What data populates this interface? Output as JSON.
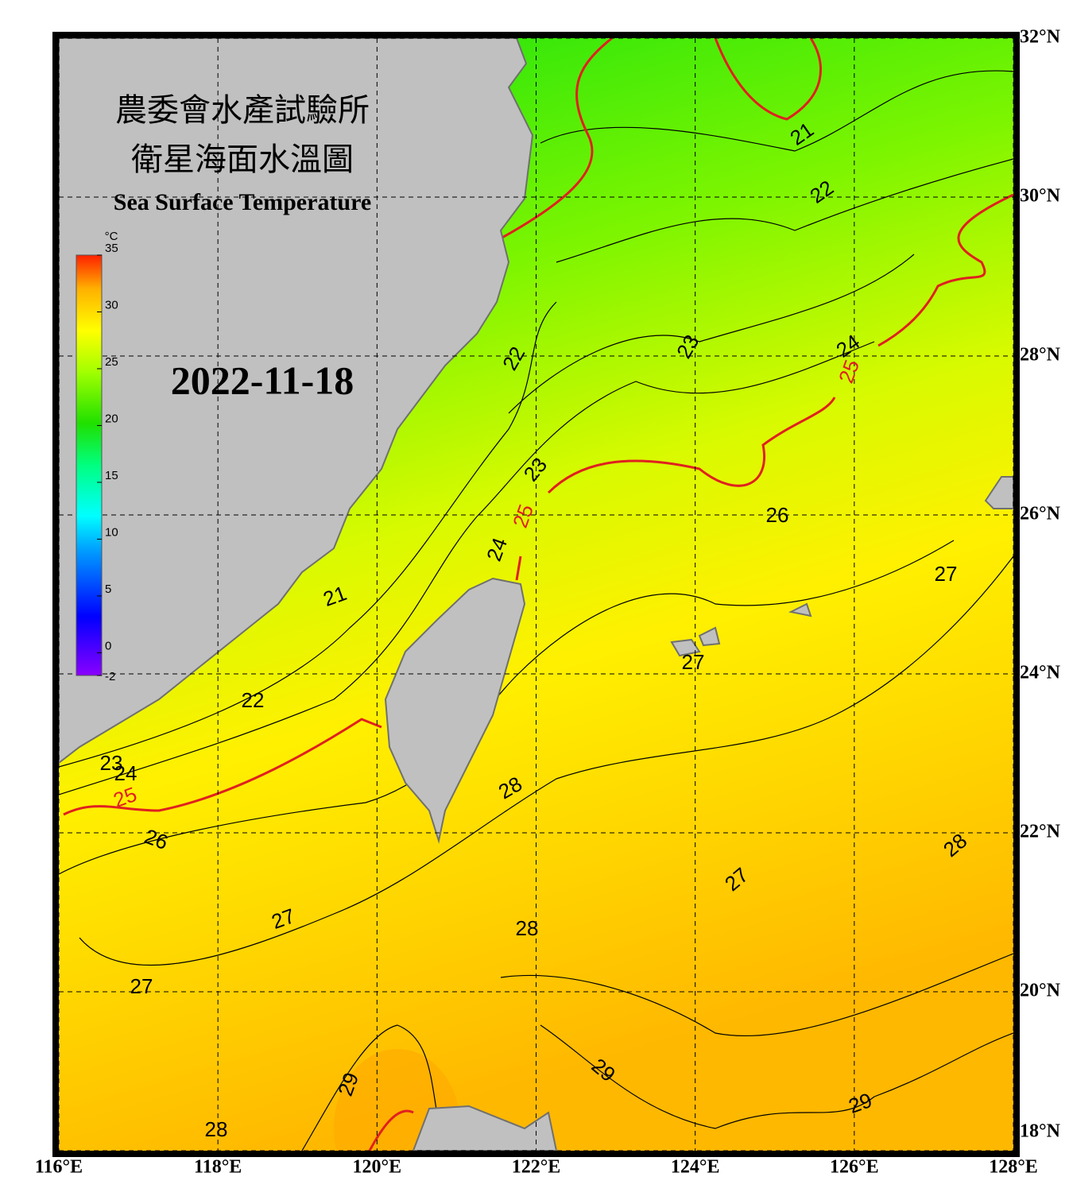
{
  "title": {
    "line1": "農委會水產試驗所",
    "line2": "衛星海面水溫圖",
    "line3": "Sea Surface Temperature",
    "date": "2022-11-18"
  },
  "colorbar": {
    "unit": "°C",
    "range": [
      -2,
      35
    ],
    "ticks": [
      -2,
      0,
      5,
      10,
      15,
      20,
      25,
      30,
      35
    ]
  },
  "axes": {
    "xlim": [
      116,
      128
    ],
    "ylim": [
      18,
      32
    ],
    "xticks": [
      {
        "value": 116,
        "label": "116°E"
      },
      {
        "value": 118,
        "label": "118°E"
      },
      {
        "value": 120,
        "label": "120°E"
      },
      {
        "value": 122,
        "label": "122°E"
      },
      {
        "value": 124,
        "label": "124°E"
      },
      {
        "value": 126,
        "label": "126°E"
      },
      {
        "value": 128,
        "label": "128°E"
      }
    ],
    "yticks": [
      {
        "value": 18,
        "label": "18°N"
      },
      {
        "value": 20,
        "label": "20°N"
      },
      {
        "value": 22,
        "label": "22°N"
      },
      {
        "value": 24,
        "label": "24°N"
      },
      {
        "value": 26,
        "label": "26°N"
      },
      {
        "value": 28,
        "label": "28°N"
      },
      {
        "value": 30,
        "label": "30°N"
      },
      {
        "value": 32,
        "label": "32°N"
      }
    ]
  },
  "highlight_contour": "25",
  "contour_labels": [
    "21",
    "22",
    "23",
    "24",
    "25",
    "22",
    "23",
    "25",
    "24",
    "26",
    "27",
    "21",
    "27",
    "22",
    "23",
    "24",
    "25",
    "28",
    "26",
    "28",
    "27",
    "27",
    "28",
    "27",
    "29",
    "29",
    "29",
    "28"
  ]
}
